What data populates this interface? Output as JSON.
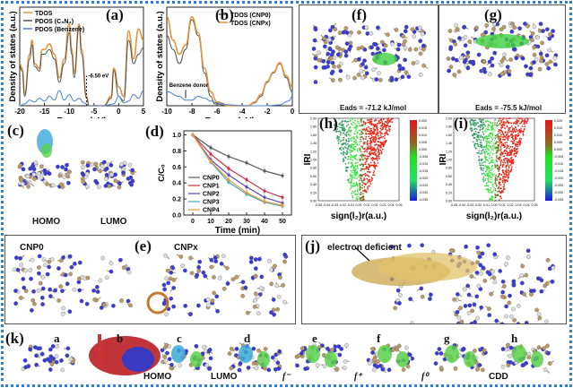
{
  "labels": {
    "a": "(a)",
    "b": "(b)",
    "c": "(c)",
    "d": "(d)",
    "e": "(e)",
    "f": "(f)",
    "g": "(g)",
    "h": "(h)",
    "i": "(i)",
    "j": "(j)",
    "k": "(k)"
  },
  "panel_c": {
    "homo": "HOMO",
    "lumo": "LUMO"
  },
  "panel_e": {
    "left": "CNP0",
    "right": "CNPx"
  },
  "panel_f": {
    "eads": "Eads = -71.2 kJ/mol"
  },
  "panel_g": {
    "eads": "Eads = -75.5 kJ/mol"
  },
  "panel_j": {
    "annotation": "electron deficient"
  },
  "panel_k": {
    "sub": [
      "a",
      "b",
      "c",
      "d",
      "e",
      "f",
      "g",
      "h"
    ],
    "captions": [
      "",
      "",
      "HOMO",
      "LUMO",
      "f⁻",
      "f⁺",
      "f⁰",
      "CDD"
    ]
  },
  "chart_data": [
    {
      "id": "a",
      "type": "line",
      "xlabel": "Energy (eV)",
      "ylabel": "Density of states (a.u.)",
      "xlim": [
        -20,
        5
      ],
      "xticks": [
        -20,
        -15,
        -10,
        -5,
        0,
        5
      ],
      "annotation": "-6.50 eV",
      "legend": "top-left",
      "series": [
        {
          "name": "TDOS",
          "color": "#e0953f",
          "x": [
            -20,
            -19.5,
            -19,
            -18,
            -17.5,
            -17,
            -16,
            -15.5,
            -15,
            -14,
            -13,
            -12,
            -11,
            -10,
            -9.5,
            -9,
            -8,
            -7.5,
            -6.5,
            -6,
            -3,
            -1.5,
            -1,
            0,
            1,
            2,
            3,
            4,
            5
          ],
          "y": [
            0.45,
            0.4,
            0.12,
            0.55,
            0.7,
            0.45,
            0.4,
            0.6,
            0.6,
            0.66,
            0.55,
            0.3,
            0.5,
            0.88,
            0.6,
            0.35,
            0.87,
            0.6,
            0.1,
            0,
            0,
            0.1,
            0.4,
            0.2,
            0.1,
            0.8,
            0.5,
            0.82,
            0.7
          ]
        },
        {
          "name": "PDOS (C₃N₄)",
          "color": "#555555",
          "x": [
            -20,
            -19.5,
            -19,
            -18,
            -17.5,
            -17,
            -16,
            -15.5,
            -15,
            -14,
            -13,
            -12,
            -11,
            -10,
            -9.5,
            -9,
            -8,
            -7.5,
            -6.5,
            -6,
            -3,
            -1.5,
            -1,
            0,
            1,
            2,
            3,
            4,
            5
          ],
          "y": [
            0.42,
            0.37,
            0.1,
            0.5,
            0.65,
            0.42,
            0.37,
            0.55,
            0.55,
            0.6,
            0.5,
            0.25,
            0.45,
            0.78,
            0.55,
            0.3,
            0.85,
            0.55,
            0.08,
            0,
            0,
            0.08,
            0.38,
            0.1,
            0.05,
            0.7,
            0.45,
            0.55,
            0.62
          ]
        },
        {
          "name": "PDOS (Benzene)",
          "color": "#4a7fd0",
          "x": [
            -20,
            -19,
            -18,
            -17,
            -16,
            -15,
            -14,
            -13,
            -12,
            -11,
            -10,
            -9,
            -8,
            -7,
            -6,
            -3,
            -1,
            0,
            1,
            2,
            3,
            4,
            5
          ],
          "y": [
            0,
            0.02,
            0.06,
            0.04,
            0.08,
            0.05,
            0.1,
            0.06,
            0.16,
            0.06,
            0.12,
            0.05,
            0.08,
            0.03,
            0,
            0,
            0.02,
            0.1,
            0.03,
            0.05,
            0.12,
            0.08,
            0.16
          ]
        }
      ]
    },
    {
      "id": "b",
      "type": "line",
      "xlabel": "Energy (eV)",
      "ylabel": "Density of states (a.u.)",
      "xlim": [
        -10,
        0
      ],
      "xticks": [
        -10,
        -8,
        -6,
        -4,
        -2,
        0
      ],
      "annotation": "Benzene donor",
      "legend": "top-right",
      "series": [
        {
          "name": "TDOS (CNP0)",
          "color": "#555555",
          "x": [
            -10,
            -9.5,
            -9,
            -8.5,
            -8,
            -7.5,
            -7,
            -6.5,
            -6.2,
            -5,
            -3.5,
            -3,
            -2.5,
            -2,
            -1.5,
            -1,
            -0.5,
            0
          ],
          "y": [
            0.75,
            0.6,
            0.45,
            0.6,
            0.92,
            0.75,
            0.35,
            0.1,
            0.02,
            0,
            0,
            0.03,
            0.1,
            0.25,
            0.35,
            0.45,
            0.3,
            0.15
          ]
        },
        {
          "name": "TDOS (CNPx)",
          "color": "#e0953f",
          "x": [
            -10,
            -9.5,
            -9,
            -8.5,
            -8,
            -7.5,
            -7,
            -6.5,
            -6,
            -5,
            -3.5,
            -3,
            -2.5,
            -2,
            -1.5,
            -1,
            -0.5,
            0
          ],
          "y": [
            0.95,
            0.7,
            0.55,
            0.65,
            0.95,
            0.78,
            0.4,
            0.15,
            0.04,
            0,
            0,
            0.04,
            0.12,
            0.26,
            0.36,
            0.46,
            0.32,
            0.2
          ]
        },
        {
          "color": "#4a7fd0",
          "x": [
            -10,
            -9,
            -8.5,
            -8,
            -7.5,
            -7,
            -6.5,
            -6,
            -5,
            -4,
            -3,
            -2,
            -1,
            -0.3,
            0
          ],
          "y": [
            0.15,
            0.1,
            0.06,
            0.06,
            0.1,
            0.08,
            0.05,
            0.03,
            0.01,
            0,
            0,
            0,
            0.01,
            0.05,
            0.1
          ]
        }
      ]
    },
    {
      "id": "d",
      "type": "line",
      "xlabel": "Time (min)",
      "ylabel": "C/C₀",
      "xlim": [
        -5,
        55
      ],
      "ylim": [
        0,
        1.05
      ],
      "xticks": [
        0,
        10,
        20,
        30,
        40,
        50
      ],
      "yticks": [
        0.0,
        0.2,
        0.4,
        0.6,
        0.8,
        1.0
      ],
      "legend": "bottom-left",
      "x": [
        0,
        10,
        20,
        30,
        40,
        50
      ],
      "series": [
        {
          "name": "CNP0",
          "color": "#5a5a5a",
          "values": [
            1,
            0.84,
            0.73,
            0.65,
            0.55,
            0.49
          ]
        },
        {
          "name": "CNP1",
          "color": "#c8304a",
          "values": [
            1,
            0.76,
            0.58,
            0.44,
            0.3,
            0.22
          ]
        },
        {
          "name": "CNP2",
          "color": "#5a48a8",
          "values": [
            1,
            0.69,
            0.5,
            0.35,
            0.22,
            0.15
          ]
        },
        {
          "name": "CNP3",
          "color": "#3fa9c4",
          "values": [
            1,
            0.66,
            0.41,
            0.26,
            0.16,
            0.11
          ]
        },
        {
          "name": "CNP4",
          "color": "#e79a3a",
          "values": [
            1,
            0.67,
            0.44,
            0.28,
            0.17,
            0.12
          ]
        }
      ]
    },
    {
      "id": "h",
      "type": "scatter",
      "xlabel": "sign(l₂)r(a.u.)",
      "ylabel": "IRI",
      "xlim": [
        -0.05,
        0.05
      ],
      "ylim": [
        0,
        2
      ],
      "xticks": [
        "-0.05",
        "-0.04",
        "-0.03",
        "-0.02",
        "-0.01",
        "0.00",
        "0.01",
        "0.02",
        "0.03",
        "0.04",
        "0.05"
      ],
      "yticks": [
        "0.00",
        "0.20",
        "0.40",
        "0.60",
        "0.80",
        "1.00",
        "1.20",
        "1.40",
        "1.60",
        "1.80",
        "2.00"
      ],
      "colorbar": [
        "0.020",
        "0.015",
        "0.010",
        "0.005",
        "0.000",
        "-0.005",
        "-0.010",
        "-0.015",
        "-0.020",
        "-0.025",
        "-0.030",
        "-0.035"
      ]
    },
    {
      "id": "i",
      "type": "scatter",
      "xlabel": "sign(l₂)r(a.u.)",
      "ylabel": "IRI",
      "xlim": [
        -0.05,
        0.05
      ],
      "ylim": [
        0,
        2
      ],
      "xticks": [
        "-0.05",
        "-0.04",
        "-0.03",
        "-0.02",
        "-0.01",
        "0.00",
        "0.01",
        "0.02",
        "0.03",
        "0.04",
        "0.05"
      ],
      "yticks": [
        "0.00",
        "0.20",
        "0.40",
        "0.60",
        "0.80",
        "1.00",
        "1.20",
        "1.40",
        "1.60",
        "1.80",
        "2.00"
      ],
      "colorbar": [
        "0.020",
        "0.015",
        "0.010",
        "0.005",
        "0.000",
        "-0.005",
        "-0.010",
        "-0.015",
        "-0.020",
        "-0.025",
        "-0.030",
        "-0.035"
      ]
    }
  ]
}
